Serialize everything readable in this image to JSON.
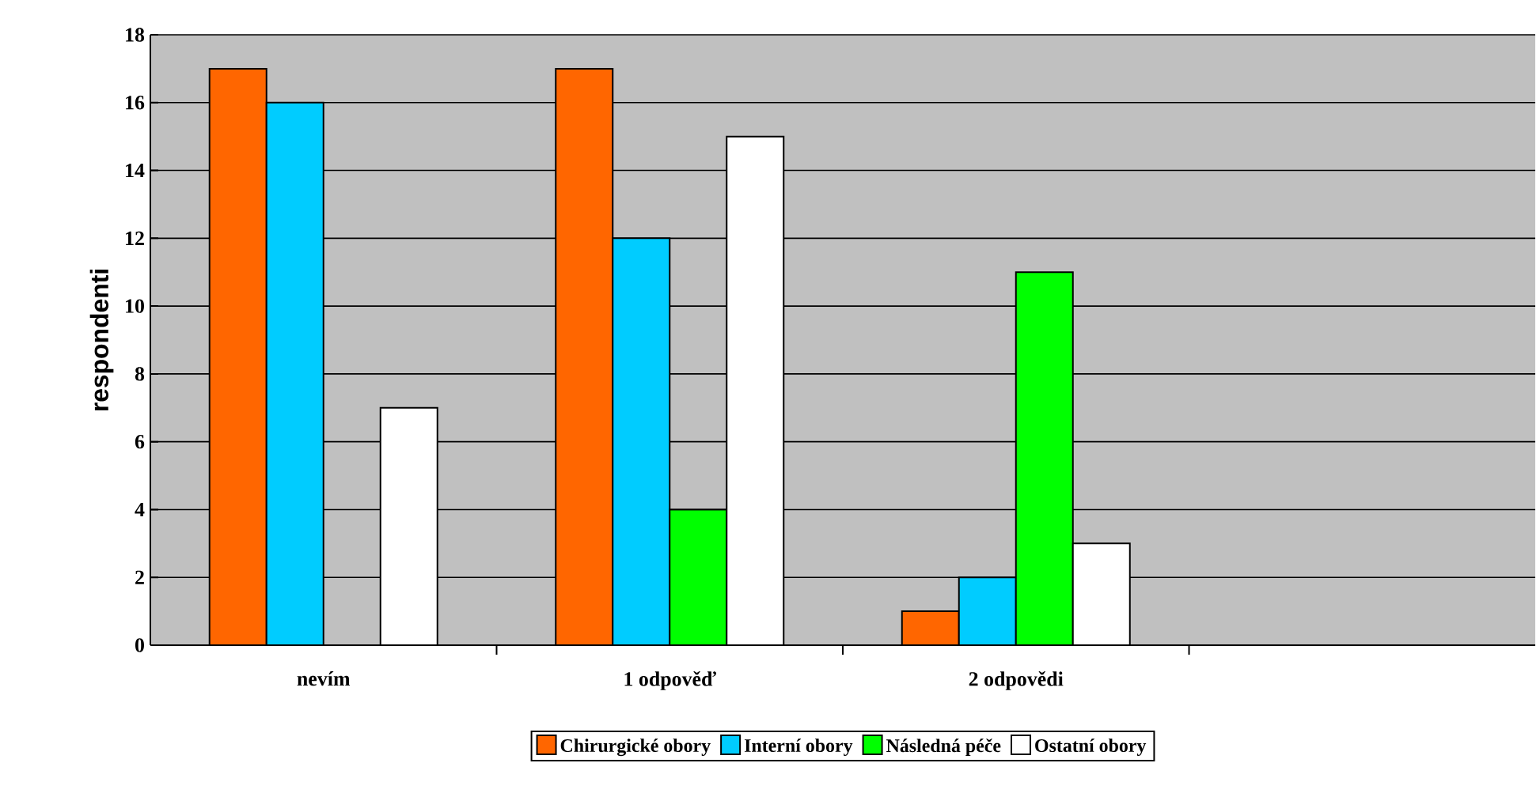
{
  "chart_data": {
    "type": "bar",
    "ylabel": "respondenti",
    "categories": [
      "nevím",
      "1 odpověď",
      "2 odpovědi",
      null
    ],
    "series": [
      {
        "name": "Chirurgické obory",
        "color": "#ff6600",
        "values": [
          17,
          17,
          1,
          null
        ]
      },
      {
        "name": "Interní obory",
        "color": "#00ccff",
        "values": [
          16,
          12,
          2,
          null
        ]
      },
      {
        "name": "Následná péče",
        "color": "#00ff00",
        "values": [
          null,
          4,
          11,
          null
        ]
      },
      {
        "name": "Ostatní obory",
        "color": "#ffffff",
        "values": [
          7,
          15,
          3,
          null
        ]
      }
    ],
    "ylim": [
      0,
      18
    ],
    "yticks": [
      0,
      2,
      4,
      6,
      8,
      10,
      12,
      14,
      16,
      18
    ],
    "grid": "y",
    "legend": "bottom"
  }
}
